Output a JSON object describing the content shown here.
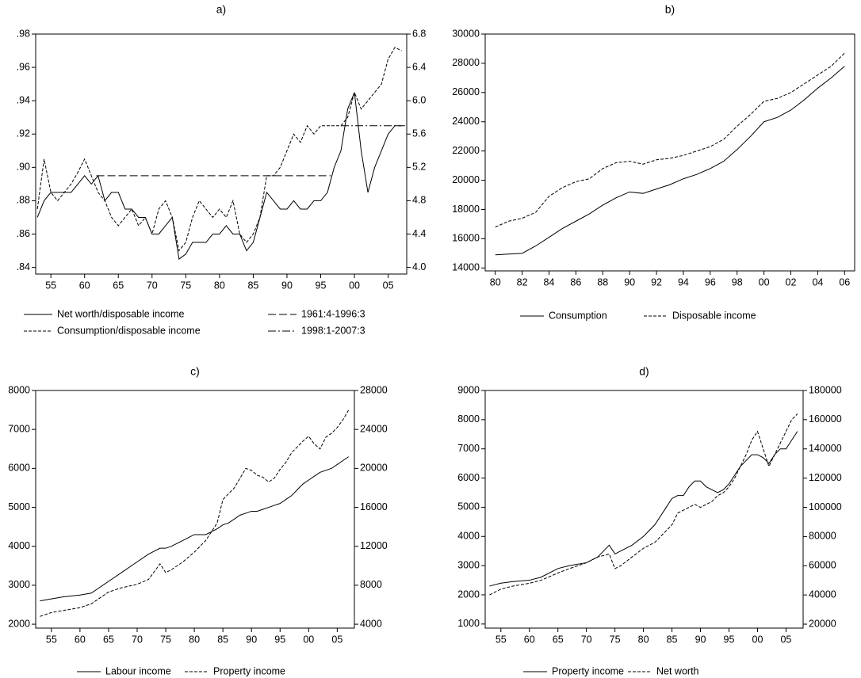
{
  "chart_data": [
    {
      "type": "line",
      "title": "a)",
      "x": [
        1953,
        1954,
        1955,
        1956,
        1957,
        1958,
        1959,
        1960,
        1961,
        1962,
        1963,
        1964,
        1965,
        1966,
        1967,
        1968,
        1969,
        1970,
        1971,
        1972,
        1973,
        1974,
        1975,
        1976,
        1977,
        1978,
        1979,
        1980,
        1981,
        1982,
        1983,
        1984,
        1985,
        1986,
        1987,
        1988,
        1989,
        1990,
        1991,
        1992,
        1993,
        1994,
        1995,
        1996,
        1997,
        1998,
        1999,
        2000,
        2001,
        2002,
        2003,
        2004,
        2005,
        2006,
        2007
      ],
      "xlim": [
        1952.75,
        2007.75
      ],
      "xticks": [
        {
          "value": 1955,
          "label": "55"
        },
        {
          "value": 1960,
          "label": "60"
        },
        {
          "value": 1965,
          "label": "65"
        },
        {
          "value": 1970,
          "label": "70"
        },
        {
          "value": 1975,
          "label": "75"
        },
        {
          "value": 1980,
          "label": "80"
        },
        {
          "value": 1985,
          "label": "85"
        },
        {
          "value": 1990,
          "label": "90"
        },
        {
          "value": 1995,
          "label": "95"
        },
        {
          "value": 2000,
          "label": "00"
        },
        {
          "value": 2005,
          "label": "05"
        }
      ],
      "ylim": [
        0.836,
        0.98
      ],
      "yticks": [
        {
          "value": 0.84,
          "label": ".84"
        },
        {
          "value": 0.86,
          "label": ".86"
        },
        {
          "value": 0.88,
          "label": ".88"
        },
        {
          "value": 0.9,
          "label": ".90"
        },
        {
          "value": 0.92,
          "label": ".92"
        },
        {
          "value": 0.94,
          "label": ".94"
        },
        {
          "value": 0.96,
          "label": ".96"
        },
        {
          "value": 0.98,
          "label": ".98"
        }
      ],
      "y2lim": [
        3.92,
        6.8
      ],
      "y2ticks": [
        {
          "value": 4,
          "label": "4.0"
        },
        4.4,
        4.8,
        5.2,
        5.6,
        {
          "value": 6,
          "label": "6.0"
        },
        6.4,
        6.8
      ],
      "series": [
        {
          "name": "Net worth/disposable income",
          "color": "#000000",
          "dash": "solid",
          "axis": "y2",
          "values": [
            4.6,
            4.8,
            4.9,
            4.9,
            4.9,
            4.9,
            5.0,
            5.1,
            5.0,
            5.1,
            4.8,
            4.9,
            4.9,
            4.7,
            4.7,
            4.6,
            4.6,
            4.4,
            4.4,
            4.5,
            4.6,
            4.1,
            4.16,
            4.3,
            4.3,
            4.3,
            4.4,
            4.4,
            4.5,
            4.4,
            4.4,
            4.2,
            4.3,
            4.6,
            4.9,
            4.8,
            4.7,
            4.7,
            4.8,
            4.7,
            4.7,
            4.8,
            4.8,
            4.9,
            5.2,
            5.4,
            5.9,
            6.1,
            5.4,
            4.9,
            5.2,
            5.4,
            5.6,
            5.7,
            5.7
          ]
        },
        {
          "name": "Consumption/disposable income",
          "color": "#000000",
          "dash": "dashed",
          "values": [
            0.875,
            0.905,
            0.885,
            0.88,
            0.885,
            0.89,
            0.897,
            0.905,
            0.895,
            0.885,
            0.88,
            0.87,
            0.865,
            0.87,
            0.875,
            0.865,
            0.87,
            0.86,
            0.875,
            0.88,
            0.87,
            0.85,
            0.855,
            0.87,
            0.88,
            0.875,
            0.87,
            0.875,
            0.87,
            0.88,
            0.86,
            0.855,
            0.86,
            0.87,
            0.895,
            0.895,
            0.9,
            0.91,
            0.92,
            0.915,
            0.925,
            0.92,
            0.925,
            0.925,
            0.925,
            0.925,
            0.93,
            0.945,
            0.935,
            0.94,
            0.945,
            0.95,
            0.965,
            0.972,
            0.97
          ]
        },
        {
          "name": "1961:4-1996:3",
          "color": "#000000",
          "dash": "longdash",
          "axis": "y2",
          "x": [
            1961.75,
            1996.5
          ],
          "values": [
            5.1,
            5.1
          ]
        },
        {
          "name": "1998:1-2007:3",
          "color": "#000000",
          "dash": "dashdot",
          "axis": "y2",
          "x": [
            1998,
            2007.5
          ],
          "values": [
            5.7,
            5.7
          ]
        }
      ]
    },
    {
      "type": "line",
      "title": "b)",
      "x": [
        1980,
        1981,
        1982,
        1983,
        1984,
        1985,
        1986,
        1987,
        1988,
        1989,
        1990,
        1991,
        1992,
        1993,
        1994,
        1995,
        1996,
        1997,
        1998,
        1999,
        2000,
        2001,
        2002,
        2003,
        2004,
        2005,
        2006
      ],
      "xlim": [
        1979.25,
        2006.75
      ],
      "xticks": [
        {
          "value": 1980,
          "label": "80"
        },
        {
          "value": 1982,
          "label": "82"
        },
        {
          "value": 1984,
          "label": "84"
        },
        {
          "value": 1986,
          "label": "86"
        },
        {
          "value": 1988,
          "label": "88"
        },
        {
          "value": 1990,
          "label": "90"
        },
        {
          "value": 1992,
          "label": "92"
        },
        {
          "value": 1994,
          "label": "94"
        },
        {
          "value": 1996,
          "label": "96"
        },
        {
          "value": 1998,
          "label": "98"
        },
        {
          "value": 2000,
          "label": "00"
        },
        {
          "value": 2002,
          "label": "02"
        },
        {
          "value": 2004,
          "label": "04"
        },
        {
          "value": 2006,
          "label": "06"
        }
      ],
      "ylim": [
        13800,
        30000
      ],
      "yticks": [
        14000,
        16000,
        18000,
        20000,
        22000,
        24000,
        26000,
        28000,
        30000
      ],
      "series": [
        {
          "name": "Consumption",
          "color": "#000000",
          "dash": "solid",
          "values": [
            14900,
            14950,
            15000,
            15500,
            16100,
            16700,
            17200,
            17700,
            18300,
            18800,
            19200,
            19100,
            19400,
            19700,
            20100,
            20400,
            20800,
            21300,
            22100,
            23000,
            24000,
            24300,
            24800,
            25500,
            26300,
            27000,
            27800
          ]
        },
        {
          "name": "Disposable income",
          "color": "#000000",
          "dash": "dashed",
          "values": [
            16800,
            17200,
            17400,
            17800,
            18900,
            19500,
            19900,
            20100,
            20800,
            21200,
            21300,
            21100,
            21400,
            21500,
            21700,
            22000,
            22300,
            22800,
            23700,
            24500,
            25400,
            25600,
            26000,
            26600,
            27200,
            27800,
            28700
          ]
        }
      ]
    },
    {
      "type": "line",
      "title": "c)",
      "x": [
        1953,
        1955,
        1957,
        1960,
        1962,
        1965,
        1967,
        1970,
        1972,
        1974,
        1975,
        1976,
        1978,
        1980,
        1982,
        1984,
        1985,
        1986,
        1987,
        1988,
        1989,
        1990,
        1991,
        1992,
        1993,
        1994,
        1995,
        1996,
        1997,
        1998,
        1999,
        2000,
        2001,
        2002,
        2003,
        2004,
        2005,
        2006,
        2007
      ],
      "xlim": [
        1952.25,
        2008
      ],
      "xticks": [
        {
          "value": 1955,
          "label": "55"
        },
        {
          "value": 1960,
          "label": "60"
        },
        {
          "value": 1965,
          "label": "65"
        },
        {
          "value": 1970,
          "label": "70"
        },
        {
          "value": 1975,
          "label": "75"
        },
        {
          "value": 1980,
          "label": "80"
        },
        {
          "value": 1985,
          "label": "85"
        },
        {
          "value": 1990,
          "label": "90"
        },
        {
          "value": 1995,
          "label": "95"
        },
        {
          "value": 2000,
          "label": "00"
        },
        {
          "value": 2005,
          "label": "05"
        }
      ],
      "ylim": [
        1900,
        8000
      ],
      "yticks": [
        2000,
        3000,
        4000,
        5000,
        6000,
        7000,
        8000
      ],
      "y2lim": [
        3600,
        28000
      ],
      "y2ticks": [
        4000,
        8000,
        12000,
        16000,
        20000,
        24000,
        28000
      ],
      "series": [
        {
          "name": "Labour income",
          "color": "#000000",
          "dash": "solid",
          "values": [
            2600,
            2650,
            2700,
            2750,
            2800,
            3100,
            3300,
            3600,
            3800,
            3950,
            3950,
            4000,
            4150,
            4300,
            4300,
            4450,
            4550,
            4600,
            4700,
            4800,
            4850,
            4900,
            4900,
            4950,
            5000,
            5050,
            5100,
            5200,
            5300,
            5450,
            5600,
            5700,
            5800,
            5900,
            5950,
            6000,
            6100,
            6200,
            6300
          ]
        },
        {
          "name": "Property income",
          "color": "#000000",
          "dash": "dashed",
          "axis": "y2",
          "values": [
            4800,
            5200,
            5400,
            5700,
            6100,
            7300,
            7700,
            8100,
            8600,
            10200,
            9300,
            9600,
            10400,
            11400,
            12600,
            14400,
            16800,
            17400,
            18000,
            19000,
            20000,
            19800,
            19300,
            19100,
            18600,
            19000,
            19900,
            20600,
            21600,
            22200,
            22800,
            23300,
            22500,
            22000,
            23200,
            23600,
            24200,
            25000,
            26000
          ]
        }
      ]
    },
    {
      "type": "line",
      "title": "d)",
      "x": [
        1953,
        1955,
        1957,
        1960,
        1962,
        1965,
        1967,
        1970,
        1972,
        1974,
        1975,
        1976,
        1978,
        1980,
        1982,
        1984,
        1985,
        1986,
        1987,
        1988,
        1989,
        1990,
        1991,
        1992,
        1993,
        1994,
        1995,
        1996,
        1997,
        1998,
        1999,
        2000,
        2001,
        2002,
        2003,
        2004,
        2005,
        2006,
        2007
      ],
      "xlim": [
        1952.25,
        2008
      ],
      "xticks": [
        {
          "value": 1955,
          "label": "55"
        },
        {
          "value": 1960,
          "label": "60"
        },
        {
          "value": 1965,
          "label": "65"
        },
        {
          "value": 1970,
          "label": "70"
        },
        {
          "value": 1975,
          "label": "75"
        },
        {
          "value": 1980,
          "label": "80"
        },
        {
          "value": 1985,
          "label": "85"
        },
        {
          "value": 1990,
          "label": "90"
        },
        {
          "value": 1995,
          "label": "95"
        },
        {
          "value": 2000,
          "label": "00"
        },
        {
          "value": 2005,
          "label": "05"
        }
      ],
      "ylim": [
        860,
        9000
      ],
      "yticks": [
        1000,
        2000,
        3000,
        4000,
        5000,
        6000,
        7000,
        8000,
        9000
      ],
      "y2lim": [
        17300,
        180000
      ],
      "y2ticks": [
        20000,
        40000,
        60000,
        80000,
        100000,
        120000,
        140000,
        160000,
        180000
      ],
      "series": [
        {
          "name": "Property income",
          "color": "#000000",
          "dash": "solid",
          "values": [
            2300,
            2400,
            2450,
            2500,
            2600,
            2900,
            3000,
            3100,
            3300,
            3700,
            3400,
            3500,
            3700,
            4000,
            4400,
            5000,
            5300,
            5400,
            5400,
            5700,
            5900,
            5900,
            5700,
            5600,
            5500,
            5600,
            5800,
            6100,
            6400,
            6600,
            6800,
            6800,
            6700,
            6500,
            6800,
            7000,
            7000,
            7300,
            7600
          ]
        },
        {
          "name": "Net worth",
          "color": "#000000",
          "dash": "dashed",
          "axis": "y2",
          "values": [
            40000,
            44000,
            46000,
            48000,
            50000,
            55000,
            58000,
            62000,
            66000,
            68000,
            58000,
            60000,
            66000,
            72000,
            76000,
            84000,
            88000,
            96000,
            98000,
            100000,
            102000,
            100000,
            102000,
            104000,
            108000,
            110000,
            114000,
            120000,
            128000,
            136000,
            146000,
            152000,
            140000,
            128000,
            136000,
            144000,
            152000,
            160000,
            164000
          ]
        }
      ]
    }
  ]
}
